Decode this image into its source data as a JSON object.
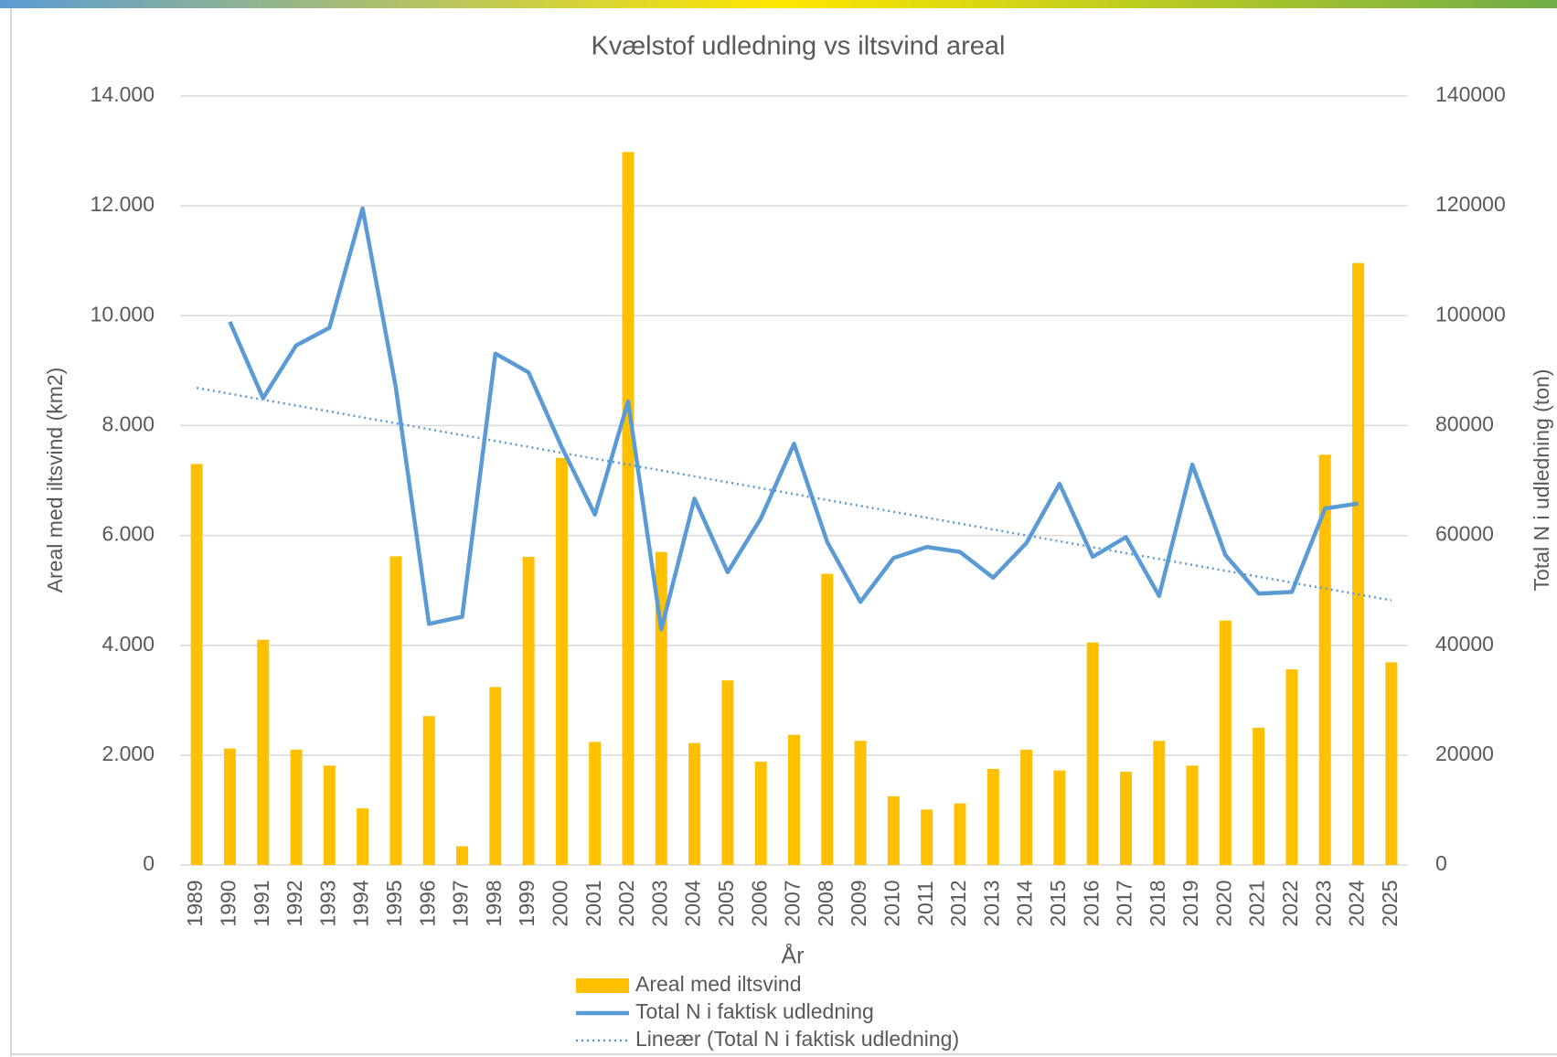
{
  "chart_data": {
    "type": "bar-line",
    "title": "Kvælstof udledning vs iltsvind areal",
    "x_label": "År",
    "y_label": "Areal med iltsvind  (km2)",
    "y2_label": "Total N i udledning (ton)",
    "categories": [
      "1989",
      "1990",
      "1991",
      "1992",
      "1993",
      "1994",
      "1995",
      "1996",
      "1997",
      "1998",
      "1999",
      "2000",
      "2001",
      "2002",
      "2003",
      "2004",
      "2005",
      "2006",
      "2007",
      "2008",
      "2009",
      "2010",
      "2011",
      "2012",
      "2013",
      "2014",
      "2015",
      "2016",
      "2017",
      "2018",
      "2019",
      "2020",
      "2021",
      "2022",
      "2023",
      "2024",
      "2025"
    ],
    "series": [
      {
        "name": "Areal med iltsvind",
        "type": "bar",
        "color": "#ffc000",
        "values": [
          7300,
          2120,
          4100,
          2100,
          1810,
          1030,
          5620,
          2710,
          340,
          3240,
          5610,
          7410,
          2240,
          12980,
          5700,
          2220,
          3360,
          1880,
          2370,
          5300,
          2260,
          1250,
          1010,
          1120,
          1750,
          2100,
          1720,
          4050,
          1700,
          2260,
          1810,
          4450,
          2500,
          3560,
          7470,
          10960,
          3690
        ]
      },
      {
        "name": "Total N i faktisk udledning",
        "type": "line",
        "axis": "y2",
        "color": "#5b9bd5",
        "values": [
          null,
          98900,
          85000,
          94600,
          97800,
          119500,
          87000,
          43900,
          45200,
          93100,
          89700,
          76100,
          63800,
          84400,
          42900,
          66700,
          53300,
          63100,
          76700,
          58800,
          47900,
          55900,
          57900,
          57000,
          52300,
          58600,
          69400,
          56100,
          59700,
          49000,
          72900,
          56400,
          49400,
          49700,
          64900,
          65800,
          null
        ]
      }
    ],
    "trendline": {
      "name": "Lineær (Total N i faktisk udledning)",
      "type": "linear",
      "series": 1,
      "color": "#5b9bd5"
    },
    "ylim": [
      0,
      14000
    ],
    "yticks": [
      0,
      {
        "value": 2000,
        "label": "2.000"
      },
      {
        "value": 4000,
        "label": "4.000"
      },
      {
        "value": 6000,
        "label": "6.000"
      },
      {
        "value": 8000,
        "label": "8.000"
      },
      {
        "value": 10000,
        "label": "10.000"
      },
      {
        "value": 12000,
        "label": "12.000"
      },
      {
        "value": 14000,
        "label": "14.000"
      }
    ],
    "y2lim": [
      0,
      140000
    ],
    "y2ticks": [
      0,
      20000,
      40000,
      60000,
      80000,
      100000,
      120000,
      140000
    ],
    "grid": true
  }
}
